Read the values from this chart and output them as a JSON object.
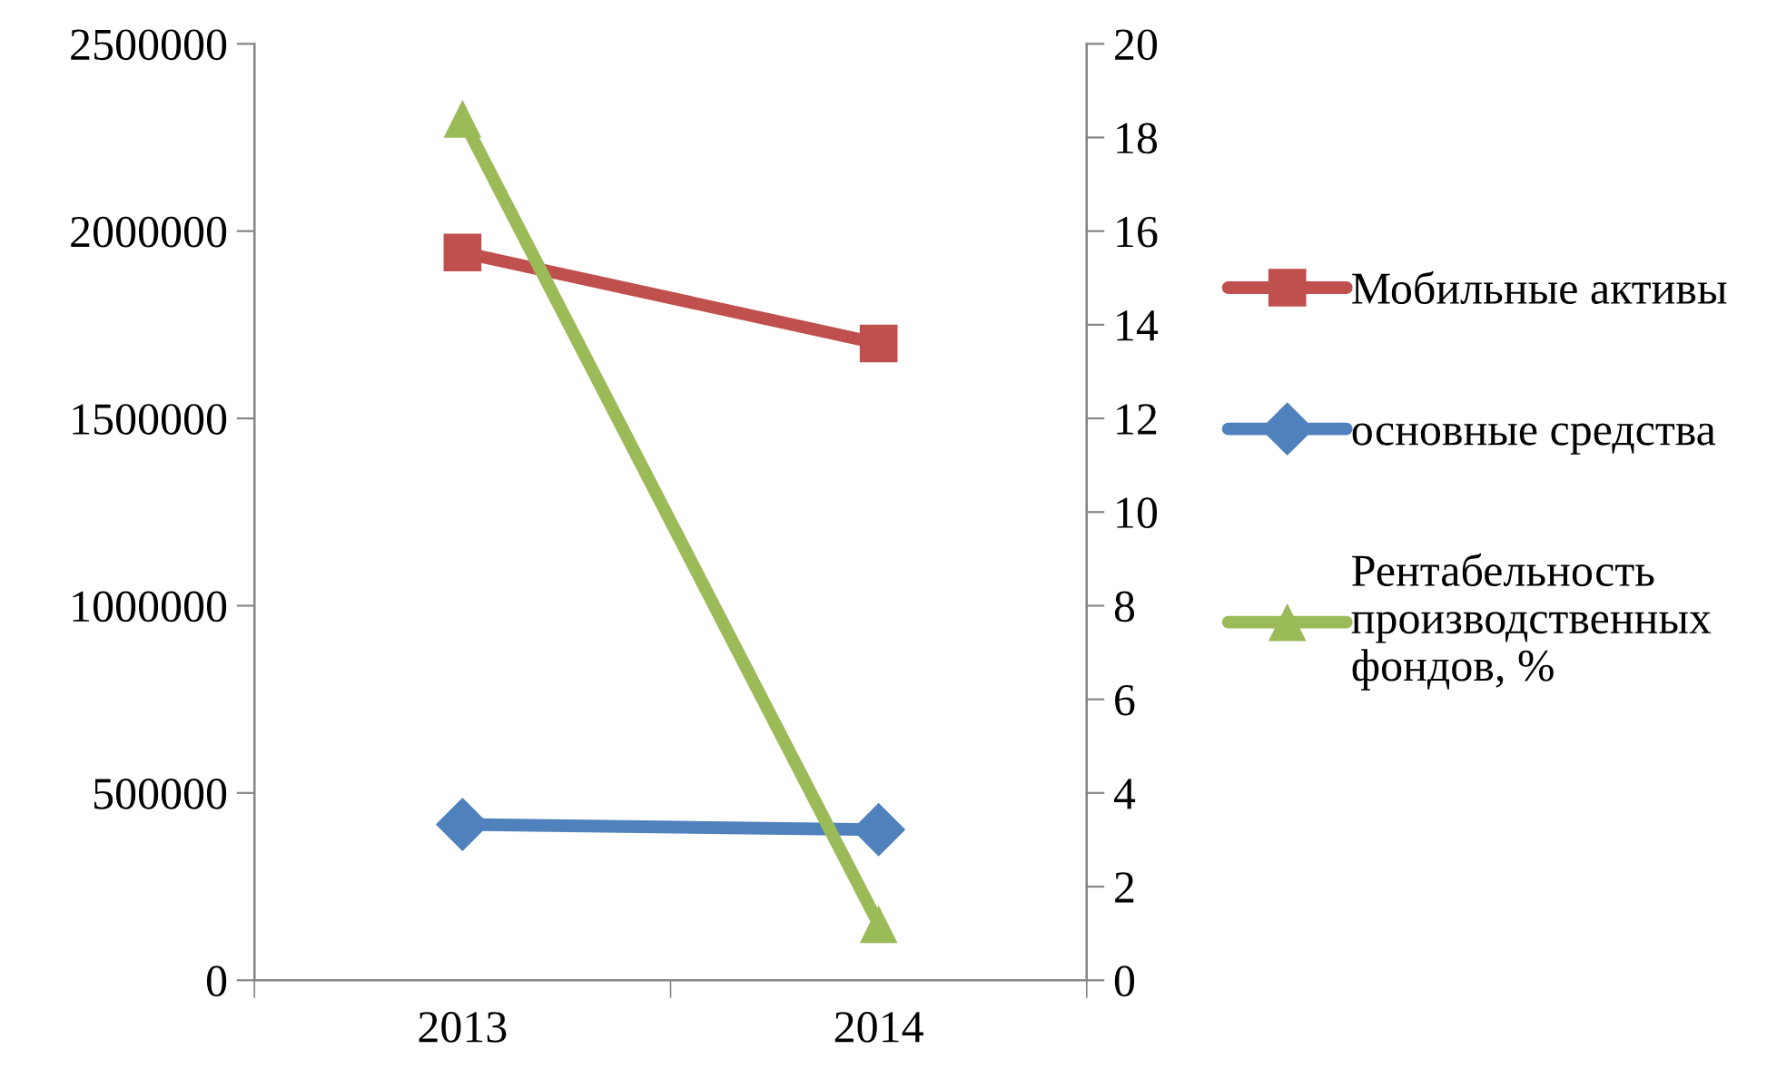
{
  "chart_data": {
    "type": "line",
    "categories": [
      "2013",
      "2014"
    ],
    "ylim": [
      0,
      2500000
    ],
    "yticks": [
      0,
      500000,
      1000000,
      1500000,
      2000000,
      2500000
    ],
    "y2lim": [
      0,
      20
    ],
    "y2ticks": [
      0,
      2,
      4,
      6,
      8,
      10,
      12,
      14,
      16,
      18,
      20
    ],
    "grid": false,
    "legend": "right",
    "series": [
      {
        "name": "Мобильные активы",
        "color": "#c0504d",
        "marker": "square",
        "values": [
          1943000,
          1700000
        ]
      },
      {
        "name": "основные средства",
        "color": "#4f81bd",
        "marker": "diamond",
        "values": [
          416000,
          402000
        ]
      },
      {
        "name": "Рентабельность производственных фондов, %",
        "color": "#9bbb59",
        "marker": "triangle",
        "axis": "y2",
        "values": [
          18.4,
          1.2
        ]
      }
    ]
  }
}
